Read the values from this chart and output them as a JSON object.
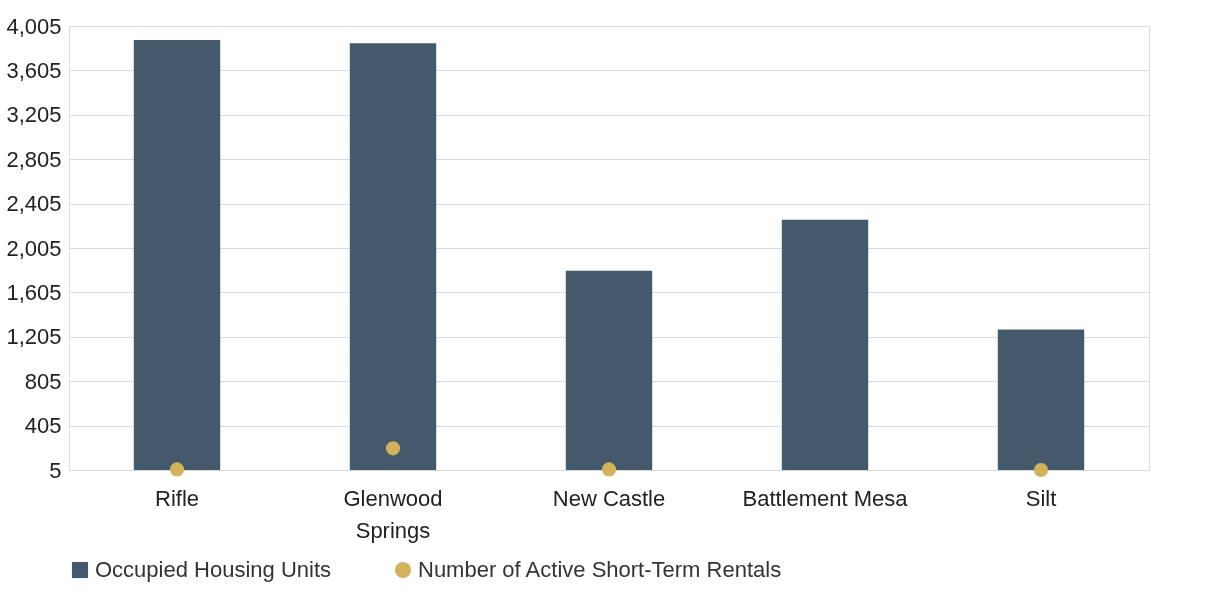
{
  "chart_data": {
    "type": "bar",
    "categories": [
      "Rifle",
      "Glenwood Springs",
      "New Castle",
      "Battlement Mesa",
      "Silt"
    ],
    "series": [
      {
        "name": "Occupied Housing Units",
        "color": "#445a6c",
        "values": [
          3880,
          3850,
          1800,
          2260,
          1270
        ]
      },
      {
        "name": "Number of Active Short-Term Rentals",
        "color": "#d4b25c",
        "type": "scatter",
        "marker": "circle",
        "values": [
          10,
          200,
          10,
          null,
          5
        ]
      }
    ],
    "ylim": [
      5,
      4005
    ],
    "yticks": [
      5,
      405,
      805,
      {
        "value": 1205,
        "label": "1,205"
      },
      {
        "value": 1605,
        "label": "1,605"
      },
      {
        "value": 2005,
        "label": "2,005"
      },
      {
        "value": 2405,
        "label": "2,405"
      },
      {
        "value": 2805,
        "label": "2,805"
      },
      {
        "value": 3205,
        "label": "3,205"
      },
      {
        "value": 3605,
        "label": "3,605"
      },
      {
        "value": 4005,
        "label": "4,005"
      }
    ],
    "grid": "y",
    "legend": "bottom"
  }
}
